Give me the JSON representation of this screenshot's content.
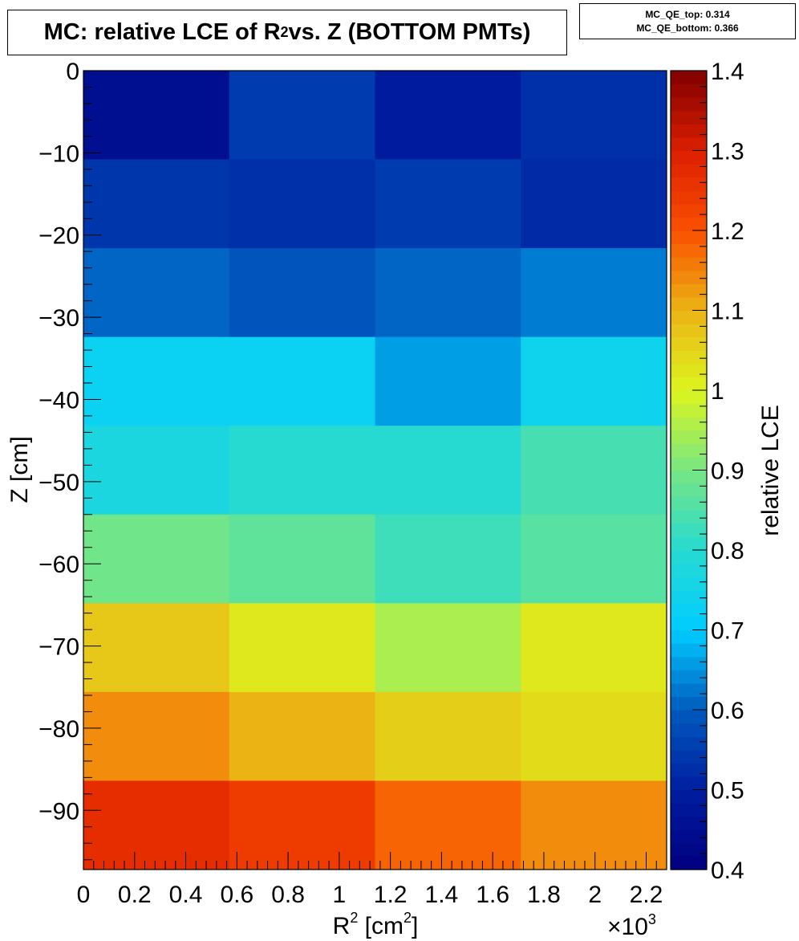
{
  "title_main": "MC: relative LCE of R",
  "title_sup": "2",
  "title_rest": " vs. Z (BOTTOM PMTs)",
  "stats": {
    "line1": "MC_QE_top: 0.314",
    "line2": "MC_QE_bottom: 0.366"
  },
  "chart_data": {
    "type": "heatmap",
    "x_edges": [
      0,
      570,
      1140,
      1710,
      2280
    ],
    "y_edges": [
      0,
      -10.8,
      -21.6,
      -32.4,
      -43.2,
      -54.0,
      -64.8,
      -75.6,
      -86.4,
      -97.2
    ],
    "xlim": [
      0,
      2280
    ],
    "ylim": [
      -97.2,
      0
    ],
    "zlim": [
      0.4,
      1.4
    ],
    "x_ticks": [
      0,
      200,
      400,
      600,
      800,
      1000,
      1200,
      1400,
      1600,
      1800,
      2000,
      2200
    ],
    "x_tick_labels": [
      "0",
      "0.2",
      "0.4",
      "0.6",
      "0.8",
      "1",
      "1.2",
      "1.4",
      "1.6",
      "1.8",
      "2",
      "2.2"
    ],
    "x_multiplier": "×10",
    "x_multiplier_exp": "3",
    "y_ticks": [
      0,
      -10,
      -20,
      -30,
      -40,
      -50,
      -60,
      -70,
      -80,
      -90
    ],
    "y_tick_labels": [
      "0",
      "−10",
      "−20",
      "−30",
      "−40",
      "−50",
      "−60",
      "−70",
      "−80",
      "−90"
    ],
    "z_ticks": [
      0.4,
      0.5,
      0.6,
      0.7,
      0.8,
      0.9,
      1.0,
      1.1,
      1.2,
      1.3,
      1.4
    ],
    "z_tick_labels": [
      "0.4",
      "0.5",
      "0.6",
      "0.7",
      "0.8",
      "0.9",
      "1",
      "1.1",
      "1.2",
      "1.3",
      "1.4"
    ],
    "xlabel": "R",
    "xlabel_sup": "2",
    "xlabel_unit": " [cm",
    "xlabel_unit_sup": "2",
    "xlabel_close": "]",
    "ylabel": "Z [cm]",
    "zlabel": "relative LCE",
    "values": [
      [
        0.45,
        0.55,
        0.49,
        0.53
      ],
      [
        0.54,
        0.53,
        0.55,
        0.52
      ],
      [
        0.61,
        0.59,
        0.61,
        0.63
      ],
      [
        0.73,
        0.73,
        0.66,
        0.74
      ],
      [
        0.77,
        0.8,
        0.8,
        0.84
      ],
      [
        0.89,
        0.87,
        0.83,
        0.86
      ],
      [
        1.07,
        1.02,
        0.95,
        1.02
      ],
      [
        1.14,
        1.1,
        1.06,
        1.04
      ],
      [
        1.27,
        1.24,
        1.18,
        1.14
      ]
    ]
  }
}
